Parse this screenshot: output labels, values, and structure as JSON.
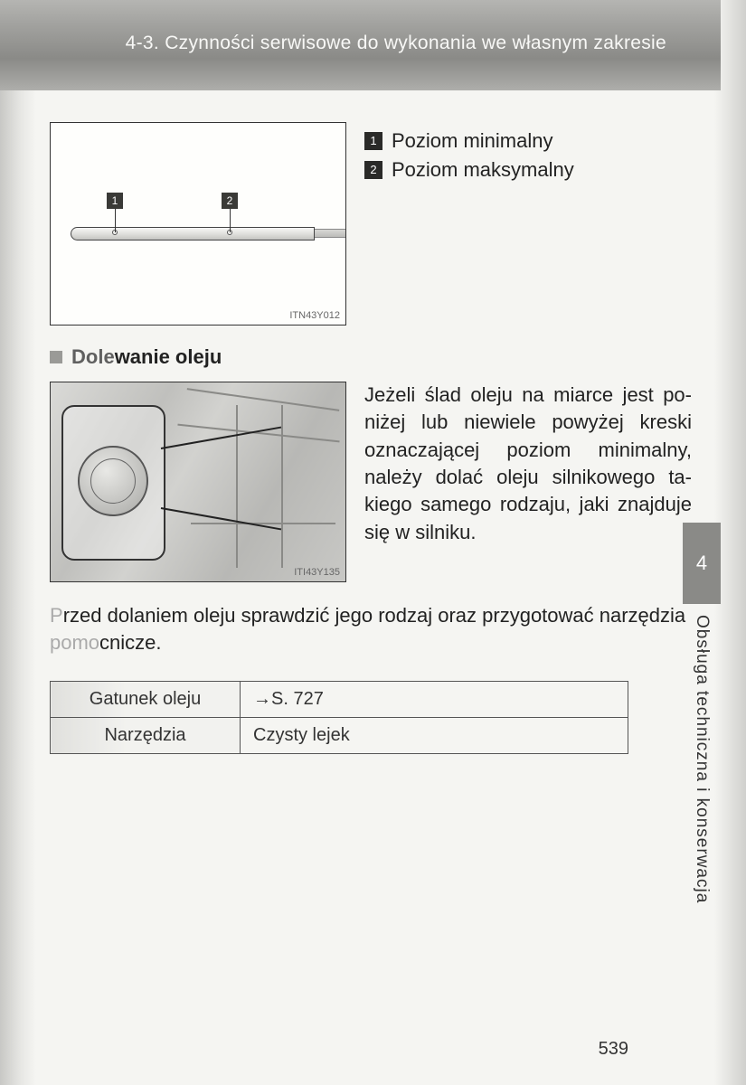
{
  "header": {
    "section_number": "4-3.",
    "section_title": "Czynności serwisowe do wykonania we własnym zakresie"
  },
  "figure1": {
    "code": "ITN43Y012",
    "callouts": {
      "n1": "1",
      "n2": "2"
    }
  },
  "legend": [
    {
      "num": "1",
      "text": "Poziom minimalny"
    },
    {
      "num": "2",
      "text": "Poziom maksymalny"
    }
  ],
  "section2": {
    "title_faded": "Dole",
    "title_rest": "wanie oleju"
  },
  "figure2": {
    "code": "ITI43Y135"
  },
  "paragraph": "Jeżeli ślad oleju na miarce jest po­niżej lub niewiele powyżej kreski oznaczającej poziom minimalny, należy dolać oleju silnikowego ta­kiego samego rodzaju, jaki znaj­duje się w silniku.",
  "note": {
    "faded_lead": "P",
    "rest": "rzed dolaniem oleju sprawdzić jego rodzaj oraz przygotować narzędzia ",
    "line2_faded": "pomo",
    "line2_rest": "cnicze."
  },
  "table": {
    "rows": [
      {
        "label": "Gatunek oleju",
        "value": "→S. 727"
      },
      {
        "label": "Narzędzia",
        "value": "Czysty lejek"
      }
    ]
  },
  "side_tab": {
    "chapter": "4",
    "label": "Obsługa techniczna i konserwacja"
  },
  "page_number": "539"
}
